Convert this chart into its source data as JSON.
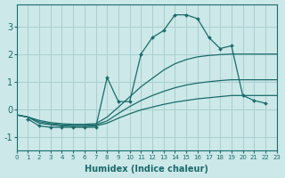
{
  "xlabel": "Humidex (Indice chaleur)",
  "bg_color": "#cce8e8",
  "grid_color": "#aacece",
  "line_color": "#1a6b6b",
  "xlim": [
    0,
    23
  ],
  "ylim": [
    -1.5,
    3.8
  ],
  "xticks": [
    0,
    1,
    2,
    3,
    4,
    5,
    6,
    7,
    8,
    9,
    10,
    11,
    12,
    13,
    14,
    15,
    16,
    17,
    18,
    19,
    20,
    21,
    22,
    23
  ],
  "yticks": [
    -1,
    0,
    1,
    2,
    3
  ],
  "line_main_x": [
    1,
    2,
    3,
    4,
    5,
    6,
    7,
    8,
    9,
    10,
    11,
    12,
    13,
    14,
    15,
    16,
    17,
    18,
    19,
    20,
    21,
    22
  ],
  "line_main_y": [
    -0.35,
    -0.6,
    -0.65,
    -0.65,
    -0.65,
    -0.65,
    -0.65,
    1.15,
    0.28,
    0.28,
    2.0,
    2.6,
    2.85,
    3.42,
    3.42,
    3.28,
    2.6,
    2.2,
    2.3,
    0.5,
    0.32,
    0.22
  ],
  "line_upper_x": [
    0,
    1,
    2,
    3,
    4,
    5,
    6,
    7,
    8,
    9,
    10,
    11,
    12,
    13,
    14,
    15,
    16,
    17,
    18,
    19,
    20,
    21,
    22,
    23
  ],
  "line_upper_y": [
    -0.2,
    -0.28,
    -0.4,
    -0.48,
    -0.52,
    -0.54,
    -0.54,
    -0.52,
    -0.28,
    0.08,
    0.45,
    0.82,
    1.12,
    1.42,
    1.65,
    1.8,
    1.9,
    1.95,
    1.98,
    2.0,
    2.0,
    2.0,
    2.0,
    2.0
  ],
  "line_mid_x": [
    0,
    1,
    2,
    3,
    4,
    5,
    6,
    7,
    8,
    9,
    10,
    11,
    12,
    13,
    14,
    15,
    16,
    17,
    18,
    19,
    20,
    21,
    22,
    23
  ],
  "line_mid_y": [
    -0.2,
    -0.28,
    -0.45,
    -0.52,
    -0.56,
    -0.58,
    -0.58,
    -0.56,
    -0.42,
    -0.15,
    0.1,
    0.32,
    0.5,
    0.65,
    0.78,
    0.88,
    0.95,
    1.0,
    1.04,
    1.07,
    1.07,
    1.07,
    1.07,
    1.07
  ],
  "line_low_x": [
    0,
    1,
    2,
    3,
    4,
    5,
    6,
    7,
    8,
    9,
    10,
    11,
    12,
    13,
    14,
    15,
    16,
    17,
    18,
    19,
    20,
    21,
    22,
    23
  ],
  "line_low_y": [
    -0.2,
    -0.28,
    -0.5,
    -0.56,
    -0.6,
    -0.62,
    -0.62,
    -0.6,
    -0.5,
    -0.32,
    -0.16,
    -0.02,
    0.08,
    0.18,
    0.26,
    0.32,
    0.38,
    0.42,
    0.46,
    0.5,
    0.5,
    0.5,
    0.5,
    0.5
  ]
}
